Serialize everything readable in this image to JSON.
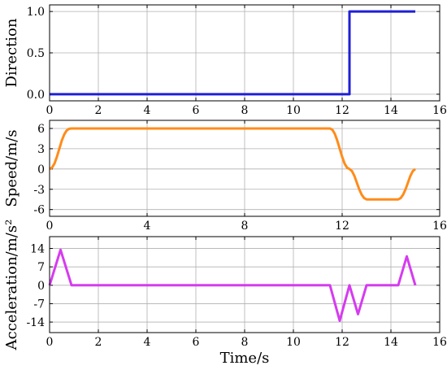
{
  "chart_data": [
    {
      "type": "line",
      "ylabel": "Direction",
      "xlabel": "",
      "xlim": [
        0,
        16
      ],
      "ylim": [
        -0.08,
        1.08
      ],
      "xticks": [
        0,
        2,
        4,
        6,
        8,
        10,
        12,
        14,
        16
      ],
      "yticks": [
        0.0,
        0.5,
        1.0
      ],
      "xtick_labels": [
        "0",
        "2",
        "4",
        "6",
        "8",
        "10",
        "12",
        "14",
        "16"
      ],
      "ytick_labels": [
        "0.0",
        "0.5",
        "1.0"
      ],
      "grid": true,
      "series": [
        {
          "color": "#1f1fd6",
          "x": [
            0,
            12.3,
            12.3,
            15.0
          ],
          "y": [
            0,
            0,
            1,
            1
          ]
        }
      ]
    },
    {
      "type": "line",
      "ylabel": "Speed/m/s",
      "xlabel": "",
      "xlim": [
        0,
        16
      ],
      "ylim": [
        -7,
        7.2
      ],
      "xticks": [
        0,
        4,
        8,
        12,
        16
      ],
      "yticks": [
        6,
        3,
        0,
        -3,
        -6
      ],
      "xtick_labels": [
        "0",
        "4",
        "8",
        "12",
        "16"
      ],
      "ytick_labels": [
        "6",
        "3",
        "0",
        "-3",
        "-6"
      ],
      "grid": true,
      "series": [
        {
          "color": "#ff8c1a",
          "x": [
            0,
            0.1,
            0.2,
            0.3,
            0.4,
            0.5,
            0.6,
            0.7,
            0.8,
            0.9,
            11.5,
            11.6,
            11.7,
            11.8,
            11.9,
            12.0,
            12.1,
            12.2,
            12.3,
            12.4,
            12.5,
            12.6,
            12.7,
            12.8,
            12.9,
            13.0,
            14.3,
            14.4,
            14.5,
            14.6,
            14.7,
            14.8,
            14.9,
            15.0
          ],
          "y": [
            0,
            0.2,
            0.8,
            1.8,
            3.0,
            4.2,
            5.1,
            5.7,
            5.95,
            6,
            6,
            5.8,
            5.2,
            4.2,
            3.0,
            1.8,
            0.8,
            0.2,
            0,
            -0.3,
            -1.0,
            -2.0,
            -3.0,
            -3.8,
            -4.3,
            -4.5,
            -4.5,
            -4.3,
            -3.8,
            -3.0,
            -2.0,
            -1.0,
            -0.3,
            0
          ]
        }
      ]
    },
    {
      "type": "line",
      "ylabel": "Acceleration/m/s²",
      "xlabel": "Time/s",
      "xlim": [
        0,
        16
      ],
      "ylim": [
        -18,
        18.5
      ],
      "xticks": [
        0,
        2,
        4,
        6,
        8,
        10,
        12,
        14,
        16
      ],
      "yticks": [
        14,
        7,
        0,
        -7,
        -14
      ],
      "xtick_labels": [
        "0",
        "2",
        "4",
        "6",
        "8",
        "10",
        "12",
        "14",
        "16"
      ],
      "ytick_labels": [
        "14",
        "7",
        "0",
        "-7",
        "-14"
      ],
      "grid": true,
      "series": [
        {
          "color": "#d63bf0",
          "x": [
            0,
            0.45,
            0.9,
            11.5,
            11.9,
            12.3,
            12.65,
            13.0,
            14.3,
            14.65,
            15.0
          ],
          "y": [
            0,
            13.5,
            0,
            0,
            -13.5,
            0,
            -11,
            0,
            0,
            11,
            0
          ]
        }
      ]
    }
  ]
}
